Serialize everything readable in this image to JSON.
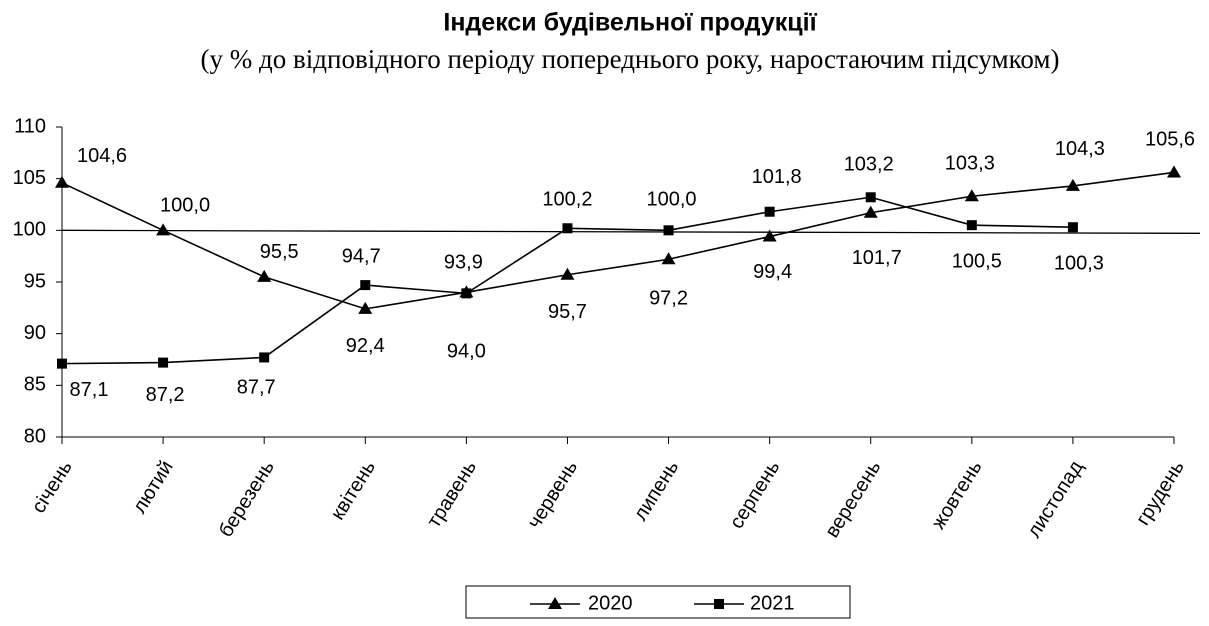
{
  "chart_data": {
    "type": "line",
    "title": "Індекси будівельної продукції",
    "subtitle": "(у % до відповідного періоду попереднього року, наростаючим підсумком)",
    "categories": [
      "січень",
      "лютий",
      "березень",
      "квітень",
      "травень",
      "червень",
      "липень",
      "серпень",
      "вересень",
      "жовтень",
      "листопад",
      "грудень"
    ],
    "series": [
      {
        "name": "2020",
        "color": "#000000",
        "marker": "triangle",
        "values": [
          104.6,
          100.0,
          95.5,
          92.4,
          94.0,
          95.7,
          97.2,
          99.4,
          101.7,
          103.3,
          104.3,
          105.6
        ],
        "value_labels": [
          "104,6",
          "100,0",
          "95,5",
          "92,4",
          "94,0",
          "95,7",
          "97,2",
          "99,4",
          "101,7",
          "103,3",
          "104,3",
          "105,6"
        ]
      },
      {
        "name": "2021",
        "color": "#000000",
        "marker": "square",
        "values": [
          87.1,
          87.2,
          87.7,
          94.7,
          93.9,
          100.2,
          100.0,
          101.8,
          103.2,
          100.5,
          100.3,
          null
        ],
        "value_labels": [
          "87,1",
          "87,2",
          "87,7",
          "94,7",
          "93,9",
          "100,2",
          "100,0",
          "101,8",
          "103,2",
          "100,5",
          "100,3",
          null
        ]
      }
    ],
    "ylim": [
      80,
      110
    ],
    "yticks": [
      80,
      85,
      90,
      95,
      100,
      105,
      110
    ],
    "reference_line": 100,
    "grid": false,
    "legend": "bottom"
  }
}
